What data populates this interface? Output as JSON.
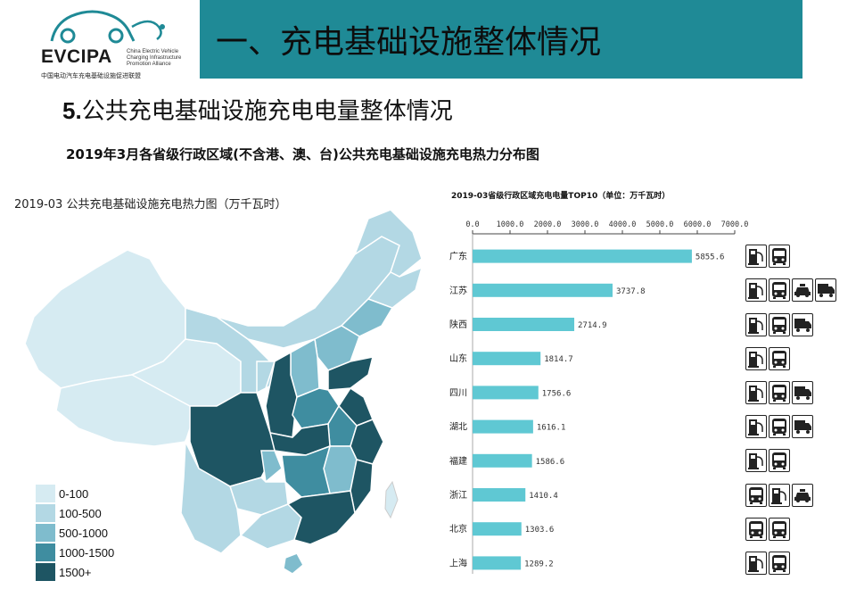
{
  "logo": {
    "name": "EVCIPA",
    "subtitle_en": "China Electric Vehicle Charging Infrastructure Promotion Alliance",
    "subtitle_cn": "中国电动汽车充电基础设施促进联盟"
  },
  "header": {
    "title": "一、充电基础设施整体情况"
  },
  "section": {
    "number": "5.",
    "title": "公共充电基础设施充电电量整体情况"
  },
  "subtitle": "2019年3月各省级行政区域(不含港、澳、台)公共充电基础设施充电热力分布图",
  "colors": {
    "header_bg": "#1f8a96",
    "bar": "#5fc8d3"
  },
  "map": {
    "title": "2019-03 公共充电基础设施充电热力图（万千瓦时）",
    "legend": [
      {
        "label": "0-100",
        "color": "#d6ebf2"
      },
      {
        "label": "100-500",
        "color": "#b3d8e4"
      },
      {
        "label": "500-1000",
        "color": "#7fbccd"
      },
      {
        "label": "1000-1500",
        "color": "#3f8da0"
      },
      {
        "label": "1500+",
        "color": "#1e5563"
      }
    ]
  },
  "chart_data": {
    "type": "bar",
    "orientation": "horizontal",
    "title": "2019-03省级行政区域充电电量TOP10（单位：万千瓦时）",
    "categories": [
      "广东",
      "江苏",
      "陕西",
      "山东",
      "四川",
      "湖北",
      "福建",
      "浙江",
      "北京",
      "上海"
    ],
    "values": [
      5855.6,
      3737.8,
      2714.9,
      1814.7,
      1756.6,
      1616.1,
      1586.6,
      1410.4,
      1303.6,
      1289.2
    ],
    "value_labels": [
      "5855.6",
      "3737.8",
      "2714.9",
      "1814.7",
      "1756.6",
      "1616.1",
      "1586.6",
      "1410.4",
      "1303.6",
      "1289.2"
    ],
    "xlim": [
      0,
      7000
    ],
    "ticks": [
      "0.0",
      "1000.0",
      "2000.0",
      "3000.0",
      "4000.0",
      "5000.0",
      "6000.0",
      "7000.0"
    ],
    "tick_values": [
      0,
      1000,
      2000,
      3000,
      4000,
      5000,
      6000,
      7000
    ],
    "axis_position": "top",
    "grid": false
  },
  "icons": [
    [
      "charger-icon",
      "bus-icon"
    ],
    [
      "charger-icon",
      "bus-icon",
      "taxi-icon",
      "truck-icon"
    ],
    [
      "charger-icon",
      "bus-icon",
      "truck-icon"
    ],
    [
      "charger-icon",
      "bus-icon"
    ],
    [
      "charger-icon",
      "bus-icon",
      "truck-icon"
    ],
    [
      "charger-icon",
      "bus-icon",
      "truck-icon"
    ],
    [
      "charger-icon",
      "bus-icon"
    ],
    [
      "bus-icon",
      "charger-icon",
      "taxi-icon"
    ],
    [
      "bus-icon",
      "bus-icon"
    ],
    [
      "charger-icon",
      "bus-icon"
    ]
  ]
}
